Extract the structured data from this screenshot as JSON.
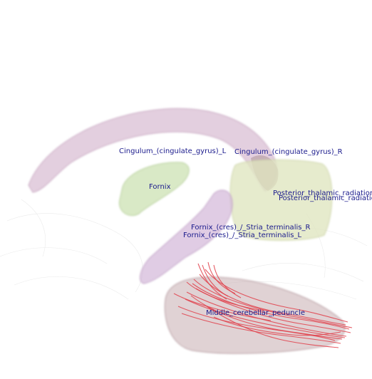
{
  "labels": {
    "cingulum_left": "Cingulum_(cingulate_gyrus)_L",
    "cingulum_right": "Cingulum_(cingulate_gyrus)_R",
    "fornix": "Fornix",
    "posterior_thalamic_radiation_1": "Posterior_thalamic_radiation",
    "posterior_thalamic_radiation_2": "Posterior_thalamic_radiation",
    "fornix_stria_right": "Fornix_(cres)_/_Stria_terminalis_R",
    "fornix_stria_left": "Fornix_(cres)_/_Stria_terminalis_L",
    "middle_cerebellar_peduncle": "Middle_cerebellar_peduncle"
  },
  "colors": {
    "label_text": "#1a1a8c",
    "cingulum": "#d8bcd2",
    "fornix": "#cfe3b8",
    "thalamic_radiation": "#dfe6bf",
    "fornix_stria": "#d4b9d9",
    "peduncle_envelope": "#cbb4b8",
    "peduncle_fibers": "#e0404a"
  }
}
